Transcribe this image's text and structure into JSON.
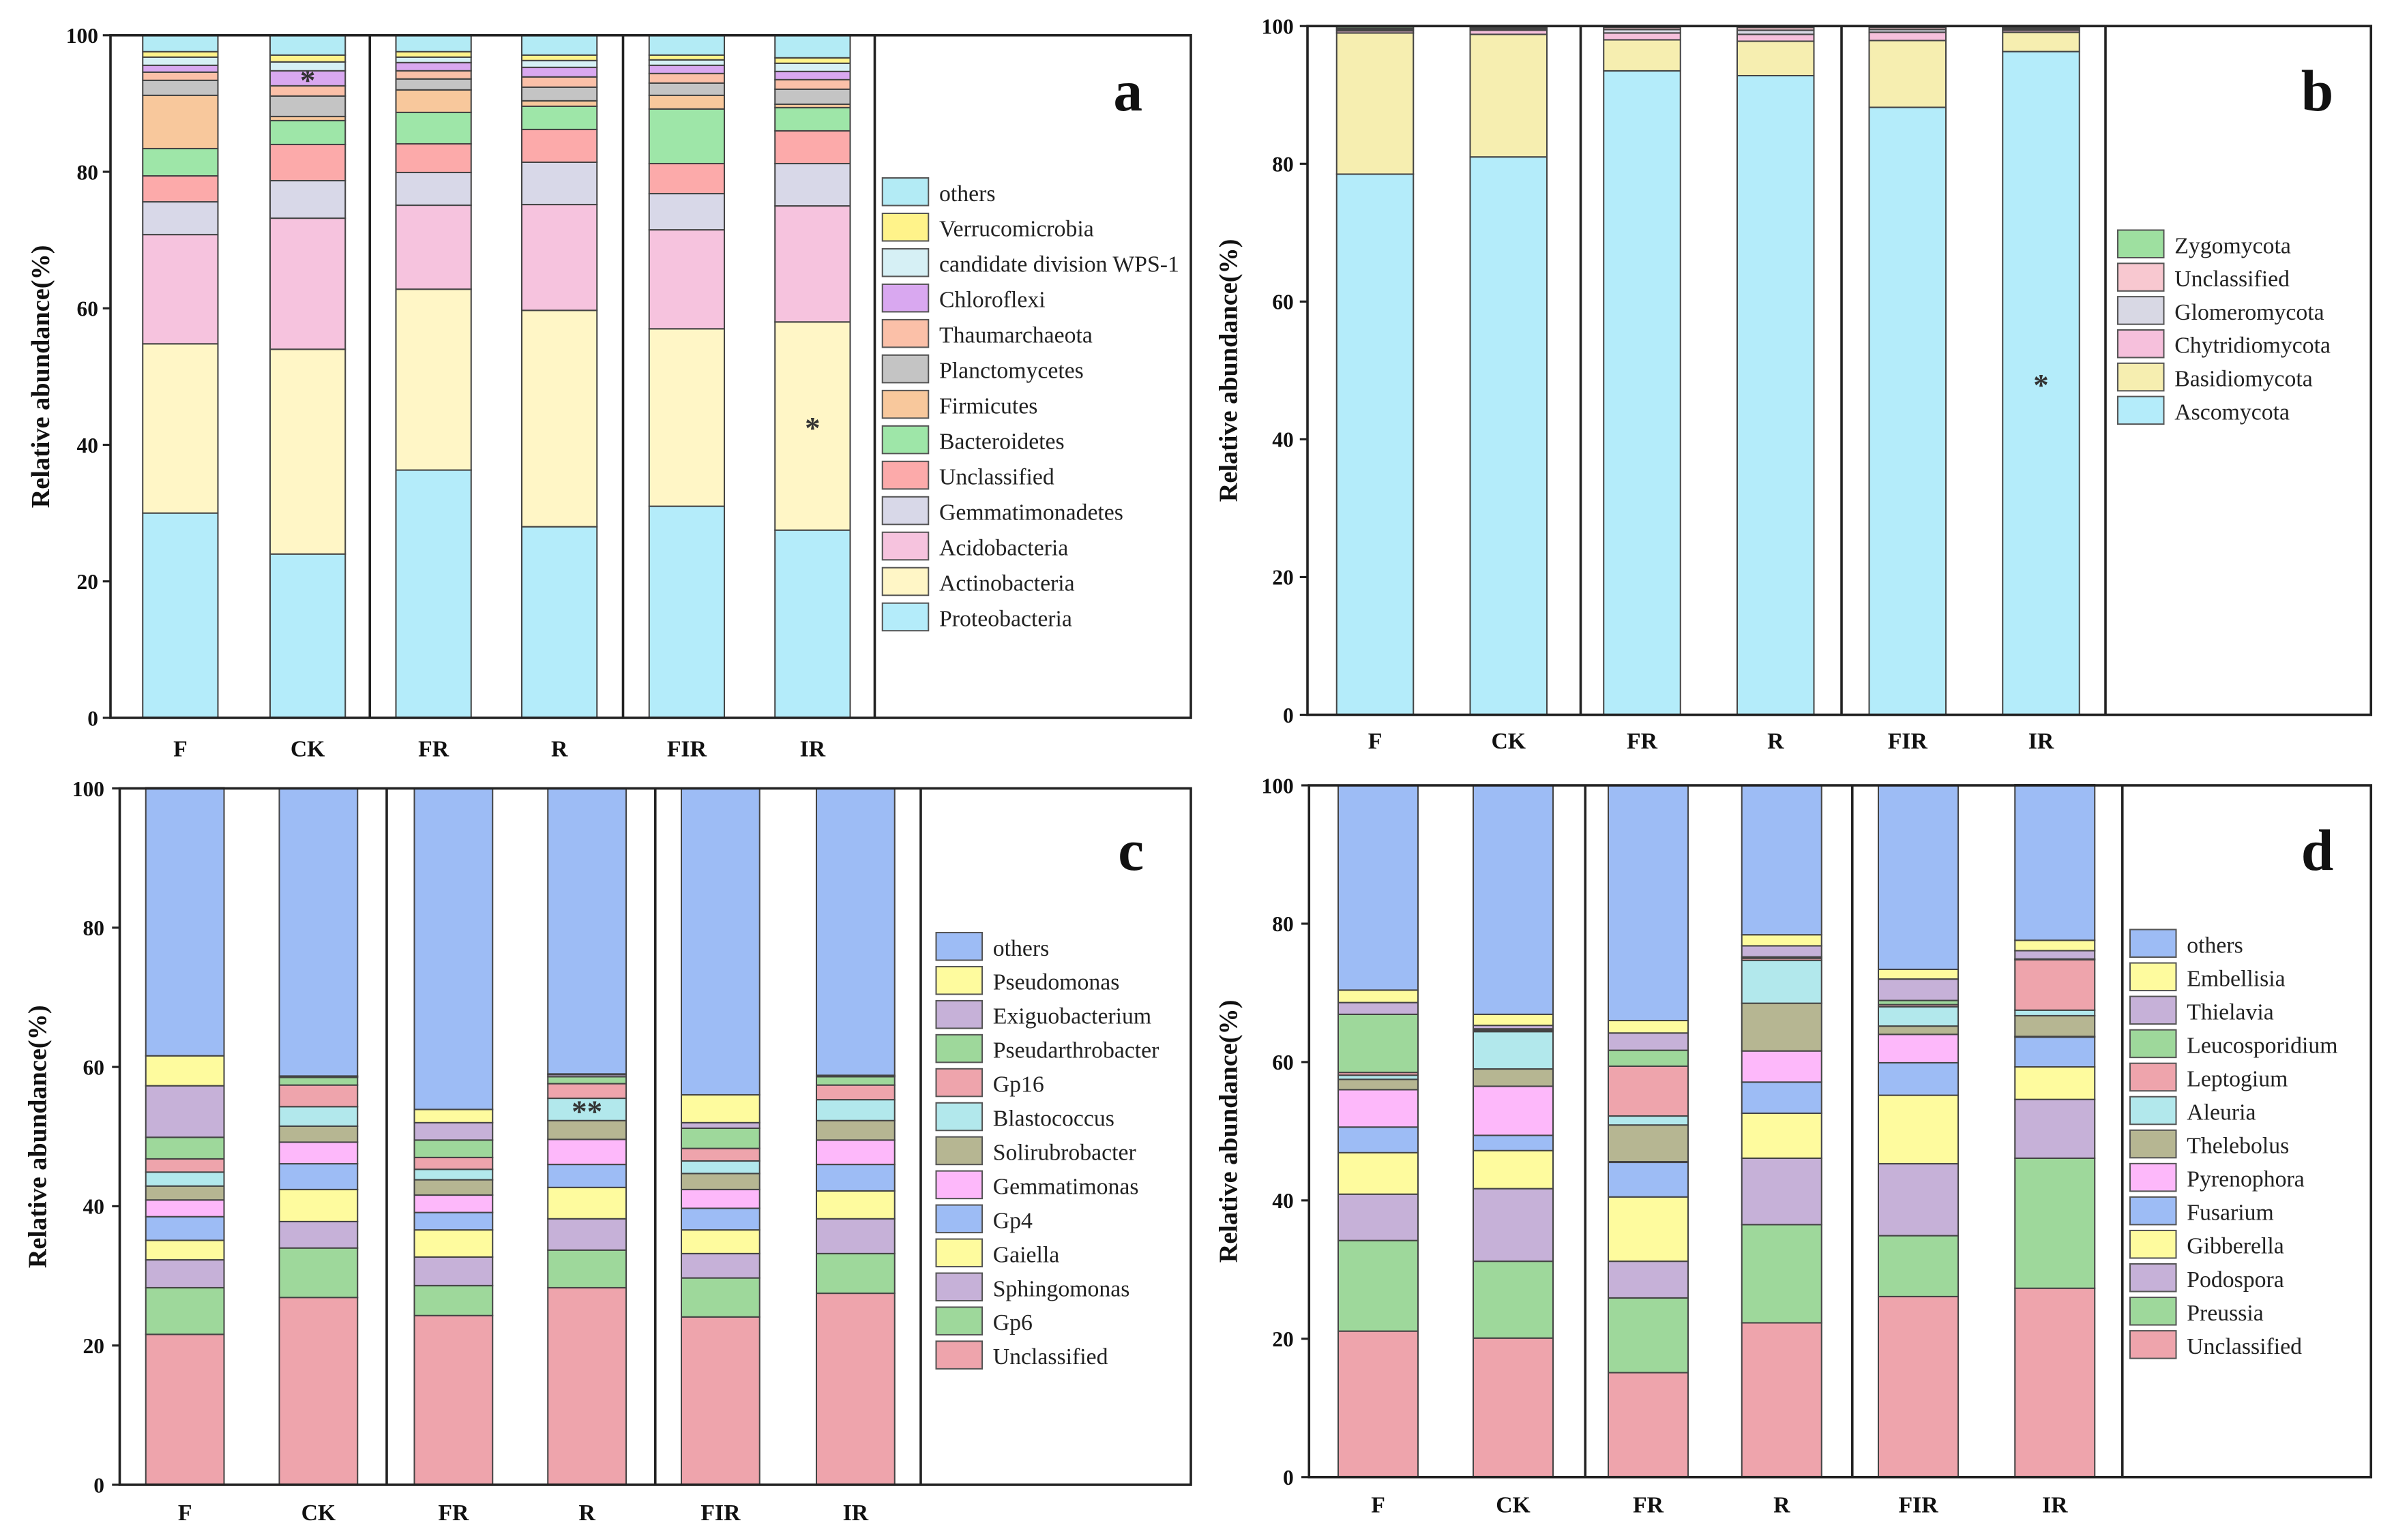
{
  "chart_data": [
    {
      "type": "bar",
      "stacked": true,
      "panel_label": "a",
      "ylabel": "Relative abundance(%)",
      "ylim": [
        0,
        100
      ],
      "yticks": [
        "0",
        "20",
        "40",
        "60",
        "80",
        "100"
      ],
      "categories": [
        "F",
        "CK",
        "FR",
        "R",
        "FIR",
        "IR"
      ],
      "series": [
        {
          "name": "Proteobacteria",
          "color": "#b4ecfa",
          "values": [
            30,
            24,
            36.3,
            28,
            31,
            27.5
          ]
        },
        {
          "name": "Actinobacteria",
          "color": "#fff6c6",
          "values": [
            24.8,
            30,
            26.5,
            31.7,
            26,
            30.5
          ]
        },
        {
          "name": "Acidobacteria",
          "color": "#f6c3de",
          "values": [
            16,
            19.2,
            12.3,
            15.5,
            14.5,
            17
          ]
        },
        {
          "name": "Gemmatimonadetes",
          "color": "#d8d8e8",
          "values": [
            4.8,
            5.5,
            4.8,
            6.2,
            5.3,
            6.2
          ]
        },
        {
          "name": "Unclassified",
          "color": "#fcaaaa",
          "values": [
            3.8,
            5.3,
            4.2,
            4.8,
            4.4,
            4.8
          ]
        },
        {
          "name": "Bacteroidetes",
          "color": "#9ee6a8",
          "values": [
            4,
            3.5,
            4.6,
            3.4,
            8,
            3.4
          ]
        },
        {
          "name": "Firmicutes",
          "color": "#f8c89c",
          "values": [
            7.8,
            0.6,
            3.3,
            0.8,
            2,
            0.5
          ]
        },
        {
          "name": "Planctomycetes",
          "color": "#c4c4c4",
          "values": [
            2.2,
            3,
            1.6,
            2,
            1.8,
            2.2
          ]
        },
        {
          "name": "Thaumarchaeota",
          "color": "#fbc0a8",
          "values": [
            1.2,
            1.5,
            1.2,
            1.5,
            1.4,
            1.4
          ]
        },
        {
          "name": "Chloroflexi",
          "color": "#d9a8f0",
          "values": [
            1,
            2.2,
            1.2,
            1.4,
            1.2,
            1.2
          ]
        },
        {
          "name": "candidate division WPS-1",
          "color": "#d6f0f5",
          "values": [
            1.2,
            1.3,
            0.8,
            1,
            0.8,
            1.2
          ]
        },
        {
          "name": "Verrucomicrobia",
          "color": "#fff38a",
          "values": [
            0.8,
            1,
            0.8,
            0.8,
            0.7,
            0.8
          ]
        },
        {
          "name": "others",
          "color": "#b3ebf5",
          "values": [
            2.4,
            2.9,
            2.4,
            2.9,
            2.9,
            3.3
          ]
        }
      ],
      "annotations": [
        {
          "category": "CK",
          "series": "Chloroflexi",
          "text": "*"
        },
        {
          "category": "IR",
          "series": "Actinobacteria",
          "text": "*"
        }
      ]
    },
    {
      "type": "bar",
      "stacked": true,
      "panel_label": "b",
      "ylabel": "Relative abundance(%)",
      "ylim": [
        0,
        100
      ],
      "yticks": [
        "0",
        "20",
        "40",
        "60",
        "80",
        "100"
      ],
      "categories": [
        "F",
        "CK",
        "FR",
        "R",
        "FIR",
        "IR"
      ],
      "series": [
        {
          "name": "Ascomycota",
          "color": "#b4ecfa",
          "values": [
            78.5,
            81,
            93.5,
            92.8,
            88.2,
            96.3
          ]
        },
        {
          "name": "Basidiomycota",
          "color": "#f6eeb0",
          "values": [
            20.5,
            17.8,
            4.5,
            5,
            9.7,
            2.8
          ]
        },
        {
          "name": "Chytridiomycota",
          "color": "#f6c0dc",
          "values": [
            0.3,
            0.6,
            1,
            1,
            1.2,
            0.3
          ]
        },
        {
          "name": "Glomeromycota",
          "color": "#d8d8e4",
          "values": [
            0.2,
            0.2,
            0.5,
            0.6,
            0.4,
            0.2
          ]
        },
        {
          "name": "Unclassified",
          "color": "#f8c8d0",
          "values": [
            0.2,
            0.2,
            0.3,
            0.4,
            0.3,
            0.2
          ]
        },
        {
          "name": "Zygomycota",
          "color": "#9ee0a0",
          "values": [
            0.3,
            0.2,
            0.2,
            0.2,
            0.2,
            0.2
          ]
        }
      ],
      "annotations": [
        {
          "category": "IR",
          "series": "Ascomycota",
          "text": "*"
        }
      ]
    },
    {
      "type": "bar",
      "stacked": true,
      "panel_label": "c",
      "ylabel": "Relative abundance(%)",
      "ylim": [
        0,
        100
      ],
      "yticks": [
        "0",
        "20",
        "40",
        "60",
        "80",
        "100"
      ],
      "categories": [
        "F",
        "CK",
        "FR",
        "R",
        "FIR",
        "IR"
      ],
      "series": [
        {
          "name": "Unclassified",
          "color": "#eea4ac",
          "values": [
            21.6,
            26.9,
            24.3,
            28.3,
            24.1,
            27.5
          ]
        },
        {
          "name": "Gp6",
          "color": "#9ed89b",
          "values": [
            6.7,
            7.1,
            4.3,
            5.4,
            5.6,
            5.7
          ]
        },
        {
          "name": "Sphingomonas",
          "color": "#c6b1d8",
          "values": [
            4,
            3.8,
            4.1,
            4.5,
            3.5,
            5
          ]
        },
        {
          "name": "Gaiella",
          "color": "#fefb9e",
          "values": [
            2.8,
            4.6,
            3.9,
            4.5,
            3.4,
            4
          ]
        },
        {
          "name": "Gp4",
          "color": "#9dbcf5",
          "values": [
            3.4,
            3.7,
            2.5,
            3.3,
            3.1,
            3.8
          ]
        },
        {
          "name": "Gemmatimonas",
          "color": "#fdb8fa",
          "values": [
            2.4,
            3.1,
            2.5,
            3.6,
            2.7,
            3.5
          ]
        },
        {
          "name": "Solirubrobacter",
          "color": "#b6b692",
          "values": [
            2,
            2.3,
            2.2,
            2.7,
            2.3,
            2.8
          ]
        },
        {
          "name": "Blastococcus",
          "color": "#b2e8ec",
          "values": [
            2,
            2.8,
            1.5,
            3.2,
            1.8,
            3
          ]
        },
        {
          "name": "Gp16",
          "color": "#eea4ac",
          "values": [
            1.9,
            3.1,
            1.7,
            2.1,
            1.8,
            2.1
          ]
        },
        {
          "name": "Pseudarthrobacter",
          "color": "#9ed89b",
          "values": [
            3.1,
            1.1,
            2.5,
            1,
            2.9,
            1.2
          ]
        },
        {
          "name": "Exiguobacterium",
          "color": "#c6b1d8",
          "values": [
            7.4,
            0.1,
            2.5,
            0.3,
            0.8,
            0.1
          ]
        },
        {
          "name": "Pseudomonas",
          "color": "#fefb9e",
          "values": [
            4.3,
            0.1,
            1.9,
            0.1,
            4,
            0.1
          ]
        },
        {
          "name": "others",
          "color": "#9dbcf5",
          "values": [
            38.5,
            41.3,
            46.1,
            41,
            44,
            41.2
          ]
        }
      ],
      "annotations": [
        {
          "category": "R",
          "series": "Blastococcus",
          "text": "**"
        }
      ]
    },
    {
      "type": "bar",
      "stacked": true,
      "panel_label": "d",
      "ylabel": "Relative abundance(%)",
      "ylim": [
        0,
        100
      ],
      "yticks": [
        "0",
        "20",
        "40",
        "60",
        "80",
        "100"
      ],
      "categories": [
        "F",
        "CK",
        "FR",
        "R",
        "FIR",
        "IR"
      ],
      "series": [
        {
          "name": "Unclassified",
          "color": "#eea4ac",
          "values": [
            21.1,
            20.1,
            15.1,
            22.3,
            26.1,
            27.3
          ]
        },
        {
          "name": "Preussia",
          "color": "#9ed89b",
          "values": [
            13.1,
            11.1,
            10.8,
            14.2,
            8.8,
            18.8
          ]
        },
        {
          "name": "Podospora",
          "color": "#c6b1d8",
          "values": [
            6.7,
            10.5,
            5.3,
            9.6,
            10.4,
            8.5
          ]
        },
        {
          "name": "Gibberella",
          "color": "#fefb9e",
          "values": [
            6,
            5.5,
            9.3,
            6.5,
            9.9,
            4.7
          ]
        },
        {
          "name": "Fusarium",
          "color": "#9dbcf5",
          "values": [
            3.7,
            2.2,
            5,
            4.5,
            4.7,
            4.3
          ]
        },
        {
          "name": "Pyrenophora",
          "color": "#fdb8fa",
          "values": [
            5.4,
            7.1,
            0.1,
            4.5,
            4.1,
            0.1
          ]
        },
        {
          "name": "Thelebolus",
          "color": "#b6b692",
          "values": [
            1.5,
            2.5,
            5.3,
            6.9,
            1.2,
            3
          ]
        },
        {
          "name": "Aleuria",
          "color": "#b2e8ec",
          "values": [
            0.6,
            5.4,
            1.3,
            6.2,
            2.8,
            0.8
          ]
        },
        {
          "name": "Leptogium",
          "color": "#eea4ac",
          "values": [
            0.4,
            0.2,
            7.2,
            0.3,
            0.3,
            7.3
          ]
        },
        {
          "name": "Leucosporidium",
          "color": "#9ed89b",
          "values": [
            8.4,
            0.2,
            2.3,
            0.2,
            0.6,
            0.1
          ]
        },
        {
          "name": "Thielavia",
          "color": "#c6b1d8",
          "values": [
            1.7,
            0.5,
            2.5,
            1.6,
            3.1,
            1.2
          ]
        },
        {
          "name": "Embellisia",
          "color": "#fefb9e",
          "values": [
            1.8,
            1.6,
            1.8,
            1.6,
            1.4,
            1.5
          ]
        },
        {
          "name": "others",
          "color": "#9dbcf5",
          "values": [
            29.6,
            33.1,
            34,
            21.6,
            26.6,
            22.5
          ]
        }
      ],
      "annotations": []
    }
  ]
}
